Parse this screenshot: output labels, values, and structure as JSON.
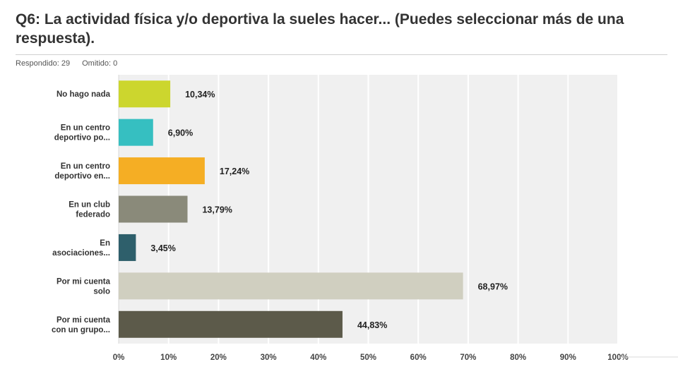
{
  "question": {
    "title": "Q6: La actividad física y/o deportiva la sueles hacer... (Puedes seleccionar más de una respuesta).",
    "answered": "Respondido: 29",
    "skipped": "Omitido: 0"
  },
  "chart_data": {
    "type": "bar",
    "orientation": "horizontal",
    "categories": [
      [
        "No hago nada"
      ],
      [
        "En un centro",
        "deportivo po..."
      ],
      [
        "En un centro",
        "deportivo en..."
      ],
      [
        "En un club",
        "federado"
      ],
      [
        "En",
        "asociaciones..."
      ],
      [
        "Por mi cuenta",
        "solo"
      ],
      [
        "Por mi cuenta",
        "con un grupo..."
      ]
    ],
    "values": [
      10.34,
      6.9,
      17.24,
      13.79,
      3.45,
      68.97,
      44.83
    ],
    "value_labels": [
      "10,34%",
      "6,90%",
      "17,24%",
      "13,79%",
      "3,45%",
      "68,97%",
      "44,83%"
    ],
    "colors": [
      "#ccd62e",
      "#36bfc1",
      "#f5ae24",
      "#8a8a7a",
      "#2e5f6b",
      "#d0cfc0",
      "#5c5a4a"
    ],
    "xlim": [
      0,
      100
    ],
    "x_ticks": [
      "0%",
      "10%",
      "20%",
      "30%",
      "40%",
      "50%",
      "60%",
      "70%",
      "80%",
      "90%",
      "100%"
    ],
    "grid": true,
    "plot_background": "#f0f0f0",
    "grid_color": "#ffffff"
  }
}
